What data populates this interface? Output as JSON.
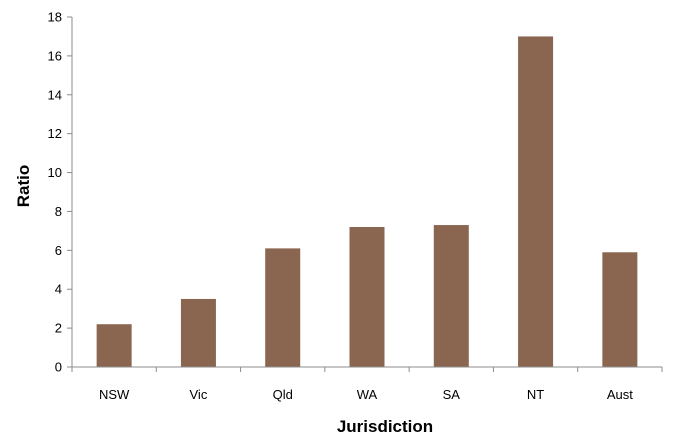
{
  "chart_data": {
    "type": "bar",
    "categories": [
      "NSW",
      "Vic",
      "Qld",
      "WA",
      "SA",
      "NT",
      "Aust"
    ],
    "values": [
      2.2,
      3.5,
      6.1,
      7.2,
      7.3,
      17.0,
      5.9
    ],
    "xlabel": "Jurisdiction",
    "ylabel": "Ratio",
    "ylim": [
      0,
      18
    ],
    "yticks": [
      "0",
      "2",
      "4",
      "6",
      "8",
      "10",
      "12",
      "14",
      "16",
      "18"
    ],
    "grid": false,
    "legend": "none",
    "bar_color": "#8a6550",
    "axis_color": "#8c8c8c"
  }
}
